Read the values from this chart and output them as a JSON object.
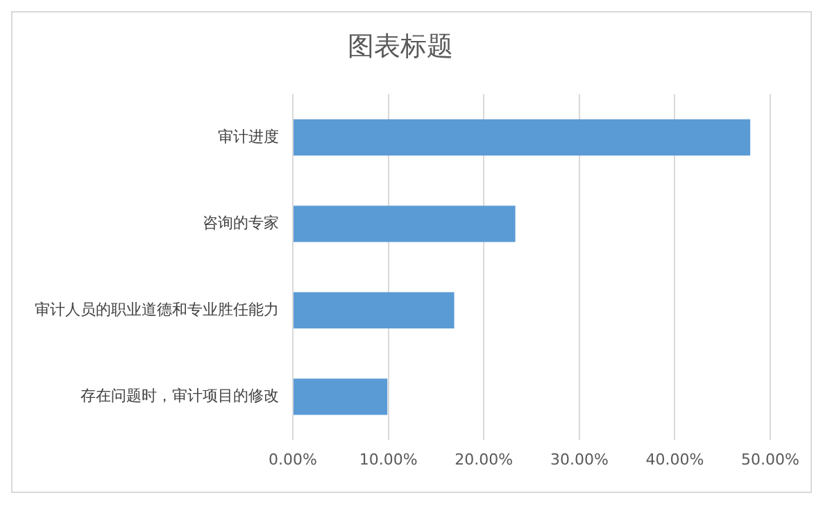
{
  "chart_data": {
    "type": "bar",
    "orientation": "horizontal",
    "title": "图表标题",
    "categories": [
      "审计进度",
      "咨询的专家",
      "审计人员的职业道德和专业胜任能力",
      "存在问题时，审计项目的修改"
    ],
    "values": [
      47.9,
      23.3,
      16.9,
      9.9
    ],
    "color": "#5b9bd5",
    "xlim": [
      0,
      50
    ],
    "xticks": [
      {
        "value": 0,
        "label": "0.00%"
      },
      {
        "value": 10,
        "label": "10.00%"
      },
      {
        "value": 20,
        "label": "20.00%"
      },
      {
        "value": 30,
        "label": "30.00%"
      },
      {
        "value": 40,
        "label": "40.00%"
      },
      {
        "value": 50,
        "label": "50.00%"
      }
    ],
    "grid": "x",
    "legend": false
  }
}
